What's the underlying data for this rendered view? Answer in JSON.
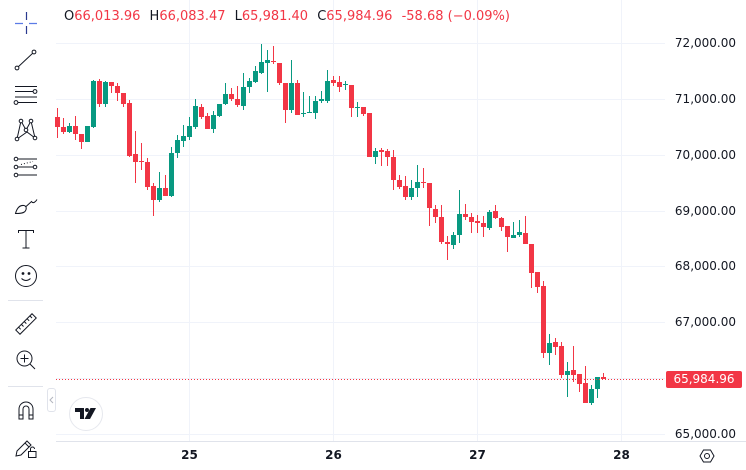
{
  "header": {
    "ohlc": [
      {
        "key": "O",
        "value": "66,013.96"
      },
      {
        "key": "H",
        "value": "66,083.47"
      },
      {
        "key": "L",
        "value": "65,981.40"
      },
      {
        "key": "C",
        "value": "65,984.96"
      }
    ],
    "change": "-58.68 (−0.09%)"
  },
  "toolbar": {
    "tools": [
      {
        "id": "crosshair",
        "icon": "crosshair-icon",
        "active": true
      },
      {
        "id": "trend-line",
        "icon": "trend-line-icon"
      },
      {
        "id": "fib-retracement",
        "icon": "fib-retracement-icon"
      },
      {
        "id": "xabcd-pattern",
        "icon": "pattern-icon"
      },
      {
        "id": "forecast",
        "icon": "projection-icon"
      },
      {
        "id": "brush",
        "icon": "brush-icon"
      },
      {
        "id": "text",
        "icon": "text-icon"
      },
      {
        "id": "emoji",
        "icon": "emoji-icon"
      },
      {
        "id": "measure",
        "icon": "ruler-icon"
      },
      {
        "id": "zoom-in",
        "icon": "zoom-in-icon"
      },
      {
        "id": "magnet",
        "icon": "magnet-icon"
      },
      {
        "id": "lock-drawings",
        "icon": "pencil-lock-icon"
      }
    ],
    "collapse_icon": "chevron-left-icon"
  },
  "price_axis": {
    "ticks": [
      {
        "value": 72000,
        "label": "72,000.00"
      },
      {
        "value": 71000,
        "label": "71,000.00"
      },
      {
        "value": 70000,
        "label": "70,000.00"
      },
      {
        "value": 69000,
        "label": "69,000.00"
      },
      {
        "value": 68000,
        "label": "68,000.00"
      },
      {
        "value": 67000,
        "label": "67,000.00"
      },
      {
        "value": 65000,
        "label": "65,000.00"
      }
    ],
    "last_price_label": "65,984.96"
  },
  "time_axis": {
    "ticks": [
      {
        "label": "25",
        "index": 22
      },
      {
        "label": "26",
        "index": 46
      },
      {
        "label": "27",
        "index": 70
      },
      {
        "label": "28",
        "index": 94
      }
    ]
  },
  "logo": "tradingview-logo",
  "settings_icon": "settings-hexagon-icon",
  "colors": {
    "up": "#089981",
    "down": "#F23645",
    "grid": "#f0f3fa",
    "axis_line": "#e0e3eb",
    "text": "#131722",
    "crosshair_active": "#2962ff"
  },
  "chart_data": {
    "type": "bar",
    "style": "candlestick",
    "title": "",
    "xlabel": "",
    "ylabel": "",
    "x_tick_labels": [
      "25",
      "26",
      "27",
      "28"
    ],
    "x_tick_candle_index": [
      22,
      46,
      70,
      94
    ],
    "y_tick_labels": [
      "72,000.00",
      "71,000.00",
      "70,000.00",
      "69,000.00",
      "68,000.00",
      "67,000.00",
      "65,000.00"
    ],
    "y_gridlines": [
      72000,
      71000,
      70000,
      69000,
      68000,
      67000,
      66000,
      65000
    ],
    "ylim": [
      64875,
      72770
    ],
    "grid": true,
    "legend": "none",
    "last_price": 65984.96,
    "last_candle": {
      "open": 66013.96,
      "high": 66083.47,
      "low": 65981.4,
      "close": 65984.96,
      "change": -58.68,
      "change_pct": -0.09
    },
    "series": [
      {
        "name": "OHLC",
        "fields": [
          "open",
          "high",
          "low",
          "close"
        ],
        "values": [
          [
            70675,
            70836,
            70299,
            70496
          ],
          [
            70496,
            70657,
            70371,
            70407
          ],
          [
            70407,
            70568,
            70389,
            70514
          ],
          [
            70514,
            70693,
            70263,
            70371
          ],
          [
            70371,
            70371,
            70103,
            70228
          ],
          [
            70228,
            70514,
            70228,
            70514
          ],
          [
            70496,
            71338,
            70478,
            71320
          ],
          [
            71320,
            71356,
            70854,
            70908
          ],
          [
            70908,
            71320,
            70854,
            71302
          ],
          [
            71302,
            71302,
            71105,
            71230
          ],
          [
            71230,
            71284,
            70962,
            71105
          ],
          [
            71105,
            71105,
            70854,
            70908
          ],
          [
            70926,
            70980,
            69959,
            69977
          ],
          [
            70013,
            70430,
            69494,
            69870
          ],
          [
            69888,
            70210,
            69727,
            69870
          ],
          [
            69870,
            69941,
            69369,
            69422
          ],
          [
            69440,
            69494,
            68903,
            69190
          ],
          [
            69190,
            69691,
            69154,
            69405
          ],
          [
            69405,
            69637,
            69261,
            69261
          ],
          [
            69261,
            70138,
            69243,
            70031
          ],
          [
            70031,
            70353,
            69941,
            70263
          ],
          [
            70246,
            70532,
            70138,
            70335
          ],
          [
            70317,
            70675,
            70263,
            70514
          ],
          [
            70496,
            70998,
            70460,
            70872
          ],
          [
            70854,
            70908,
            70640,
            70675
          ],
          [
            70693,
            70747,
            70460,
            70460
          ],
          [
            70460,
            70783,
            70389,
            70711
          ],
          [
            70693,
            70908,
            70675,
            70908
          ],
          [
            70908,
            71284,
            70890,
            71087
          ],
          [
            71087,
            71195,
            70962,
            70998
          ],
          [
            70998,
            71230,
            70854,
            70890
          ],
          [
            70872,
            71463,
            70801,
            71212
          ],
          [
            71212,
            71374,
            71105,
            71320
          ],
          [
            71302,
            71588,
            71284,
            71499
          ],
          [
            71463,
            71982,
            71445,
            71660
          ],
          [
            71642,
            71875,
            71123,
            71696
          ],
          [
            71678,
            71946,
            71624,
            71660
          ],
          [
            71642,
            71642,
            71248,
            71284
          ],
          [
            71284,
            71284,
            70568,
            70801
          ],
          [
            70801,
            71696,
            70747,
            71284
          ],
          [
            71284,
            71338,
            70711,
            70711
          ],
          [
            70729,
            71123,
            70675,
            70747
          ],
          [
            70747,
            71051,
            70747,
            70765
          ],
          [
            70747,
            71051,
            70640,
            70962
          ],
          [
            70962,
            71141,
            70926,
            70998
          ],
          [
            70962,
            71517,
            70926,
            71320
          ],
          [
            71338,
            71409,
            71230,
            71284
          ],
          [
            71302,
            71409,
            71123,
            71212
          ],
          [
            71248,
            71320,
            71159,
            71266
          ],
          [
            71248,
            71248,
            70675,
            70836
          ],
          [
            70836,
            70944,
            70675,
            70854
          ],
          [
            70854,
            70854,
            70693,
            70729
          ],
          [
            70747,
            70747,
            69959,
            69959
          ],
          [
            69959,
            70120,
            69834,
            70067
          ],
          [
            70085,
            70120,
            69798,
            70049
          ],
          [
            70067,
            70103,
            69798,
            69959
          ],
          [
            69959,
            70085,
            69369,
            69548
          ],
          [
            69548,
            69637,
            69387,
            69422
          ],
          [
            69440,
            69619,
            69190,
            69243
          ],
          [
            69243,
            69548,
            69190,
            69405
          ],
          [
            69405,
            69816,
            69243,
            69512
          ],
          [
            69512,
            69762,
            69405,
            69494
          ],
          [
            69494,
            69494,
            68724,
            69047
          ],
          [
            69029,
            69100,
            68778,
            68885
          ],
          [
            68885,
            69100,
            68402,
            68438
          ],
          [
            68438,
            68545,
            68116,
            68402
          ],
          [
            68384,
            68617,
            68312,
            68563
          ],
          [
            68563,
            69369,
            68420,
            68939
          ],
          [
            68939,
            69118,
            68832,
            68885
          ],
          [
            68885,
            68957,
            68599,
            68796
          ],
          [
            68814,
            68921,
            68599,
            68778
          ],
          [
            68778,
            68903,
            68527,
            68706
          ],
          [
            68688,
            69011,
            68653,
            68975
          ],
          [
            68993,
            69100,
            68850,
            68867
          ],
          [
            68867,
            68885,
            68635,
            68706
          ],
          [
            68724,
            68724,
            68259,
            68527
          ],
          [
            68509,
            68796,
            68509,
            68563
          ],
          [
            68563,
            68832,
            68527,
            68617
          ],
          [
            68599,
            68903,
            68402,
            68402
          ],
          [
            68402,
            68402,
            67614,
            67883
          ],
          [
            67901,
            67901,
            67525,
            67632
          ],
          [
            67650,
            67740,
            66361,
            66451
          ],
          [
            66451,
            66791,
            66236,
            66630
          ],
          [
            66648,
            66720,
            66415,
            66558
          ],
          [
            66576,
            66648,
            66003,
            66057
          ],
          [
            66057,
            66290,
            65663,
            66129
          ],
          [
            66147,
            66576,
            65932,
            66057
          ],
          [
            66075,
            66075,
            65753,
            65896
          ],
          [
            65914,
            66218,
            65556,
            65556
          ],
          [
            65556,
            65878,
            65520,
            65807
          ],
          [
            65807,
            66021,
            65645,
            66021
          ],
          [
            66013.96,
            66083.47,
            65981.4,
            65984.96
          ]
        ]
      }
    ]
  }
}
